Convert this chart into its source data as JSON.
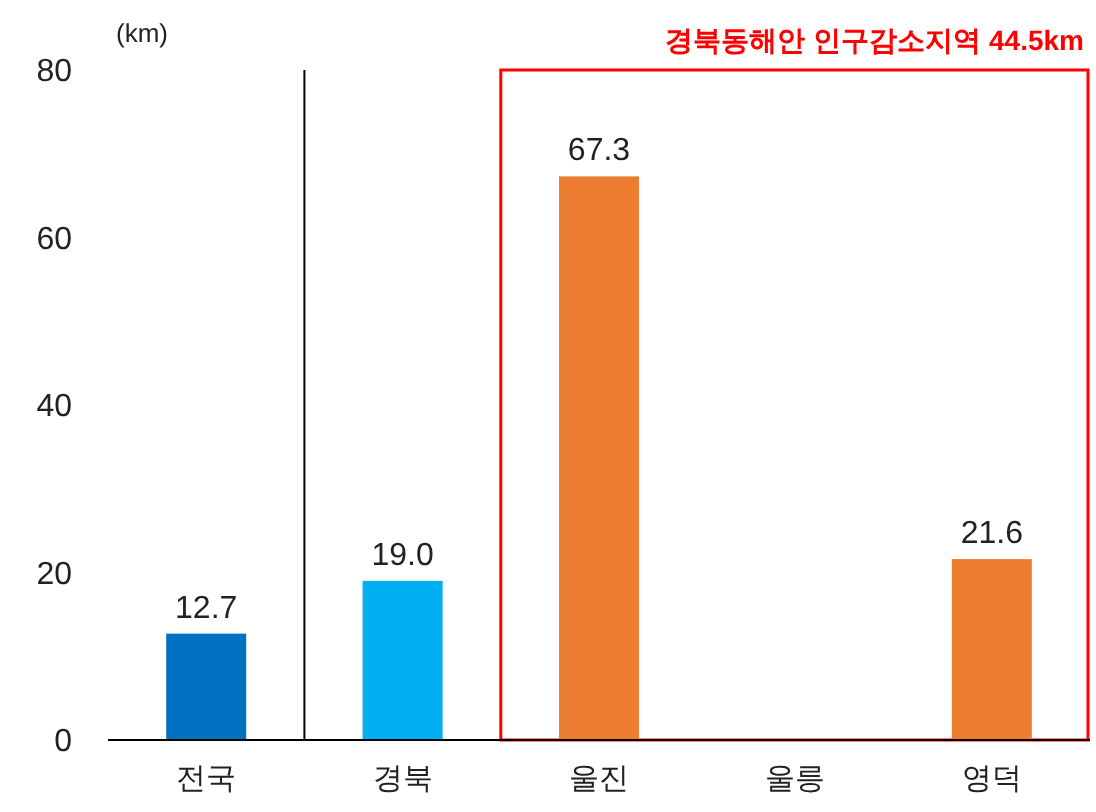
{
  "chart_data": {
    "type": "bar",
    "ylabel": "(km)",
    "categories": [
      "전국",
      "경북",
      "울진",
      "울릉",
      "영덕"
    ],
    "values": [
      12.7,
      19.0,
      67.3,
      null,
      21.6
    ],
    "colors": [
      "#0070c0",
      "#00b0f0",
      "#ed7d31",
      "#ed7d31",
      "#ed7d31"
    ],
    "value_labels": [
      "12.7",
      "19.0",
      "67.3",
      null,
      "21.6"
    ],
    "ylim": [
      0,
      80
    ],
    "yticks": [
      0,
      20,
      40,
      60,
      80
    ],
    "grid": false,
    "annotations": [
      "경북동해안 인구감소지역 44.5km"
    ]
  }
}
